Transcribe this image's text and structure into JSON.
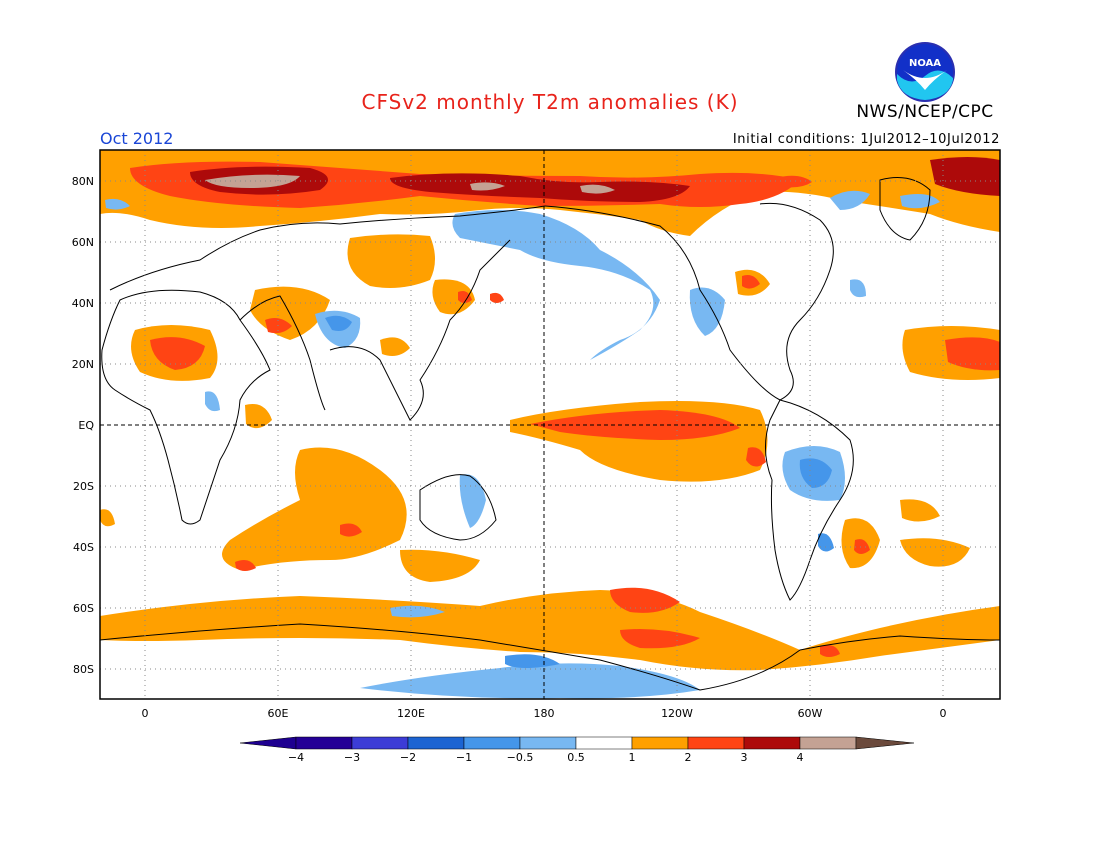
{
  "title": "CFSv2 monthly T2m anomalies (K)",
  "agency": "NWS/NCEP/CPC",
  "logo_text": "NOAA",
  "month": "Oct 2012",
  "initial_conditions": "Initial conditions: 1Jul2012–10Jul2012",
  "lat_labels": [
    "80N",
    "60N",
    "40N",
    "20N",
    "EQ",
    "20S",
    "40S",
    "60S",
    "80S"
  ],
  "lon_labels": [
    "0",
    "60E",
    "120E",
    "180",
    "120W",
    "60W",
    "0"
  ],
  "colorbar": {
    "colors": [
      "#240096",
      "#3c3cd6",
      "#1c64d2",
      "#4596ea",
      "#78b8f2",
      "#ffffff",
      "#ffa000",
      "#ff4414",
      "#ad0a0a",
      "#c4a294"
    ],
    "end_colors": [
      "#1e0090",
      "#6b4a3c"
    ],
    "tick_labels": [
      "−4",
      "−3",
      "−2",
      "−1",
      "−0.5",
      "0.5",
      "1",
      "2",
      "3",
      "4"
    ]
  },
  "colors": {
    "title": "#e8231b",
    "month": "#1a46d6",
    "warm1": "#ffa000",
    "warm2": "#ff4414",
    "warm3": "#ad0a0a",
    "warm4": "#c4a294",
    "cool1": "#78b8f2",
    "cool2": "#4596ea",
    "cool3": "#1c64d2"
  }
}
